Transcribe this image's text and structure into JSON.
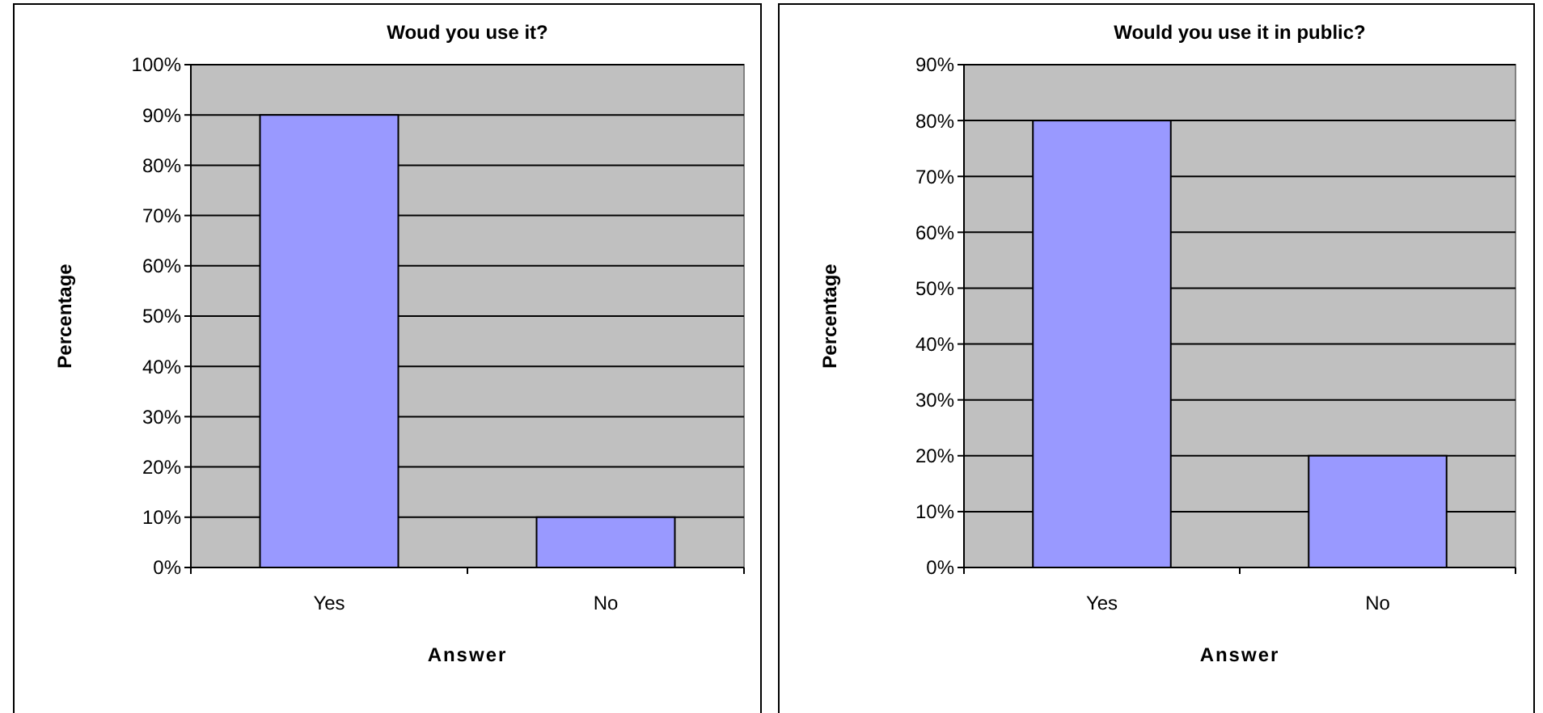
{
  "chart_data": [
    {
      "type": "bar",
      "title": "Woud you use it?",
      "xlabel": "Answer",
      "ylabel": "Percentage",
      "categories": [
        "Yes",
        "No"
      ],
      "values": [
        90,
        10
      ],
      "color": "#9999ff",
      "ylim": [
        0,
        100
      ],
      "yticks": [
        {
          "value": 0,
          "label": "0%"
        },
        {
          "value": 10,
          "label": "10%"
        },
        {
          "value": 20,
          "label": "20%"
        },
        {
          "value": 30,
          "label": "30%"
        },
        {
          "value": 40,
          "label": "40%"
        },
        {
          "value": 50,
          "label": "50%"
        },
        {
          "value": 60,
          "label": "60%"
        },
        {
          "value": 70,
          "label": "70%"
        },
        {
          "value": 80,
          "label": "80%"
        },
        {
          "value": 90,
          "label": "90%"
        },
        {
          "value": 100,
          "label": "100%"
        }
      ],
      "grid": "y"
    },
    {
      "type": "bar",
      "title": "Would you use it in public?",
      "xlabel": "Answer",
      "ylabel": "Percentage",
      "categories": [
        "Yes",
        "No"
      ],
      "values": [
        80,
        20
      ],
      "color": "#9999ff",
      "ylim": [
        0,
        90
      ],
      "yticks": [
        {
          "value": 0,
          "label": "0%"
        },
        {
          "value": 10,
          "label": "10%"
        },
        {
          "value": 20,
          "label": "20%"
        },
        {
          "value": 30,
          "label": "30%"
        },
        {
          "value": 40,
          "label": "40%"
        },
        {
          "value": 50,
          "label": "50%"
        },
        {
          "value": 60,
          "label": "60%"
        },
        {
          "value": 70,
          "label": "70%"
        },
        {
          "value": 80,
          "label": "80%"
        },
        {
          "value": 90,
          "label": "90%"
        }
      ],
      "grid": "y"
    }
  ]
}
